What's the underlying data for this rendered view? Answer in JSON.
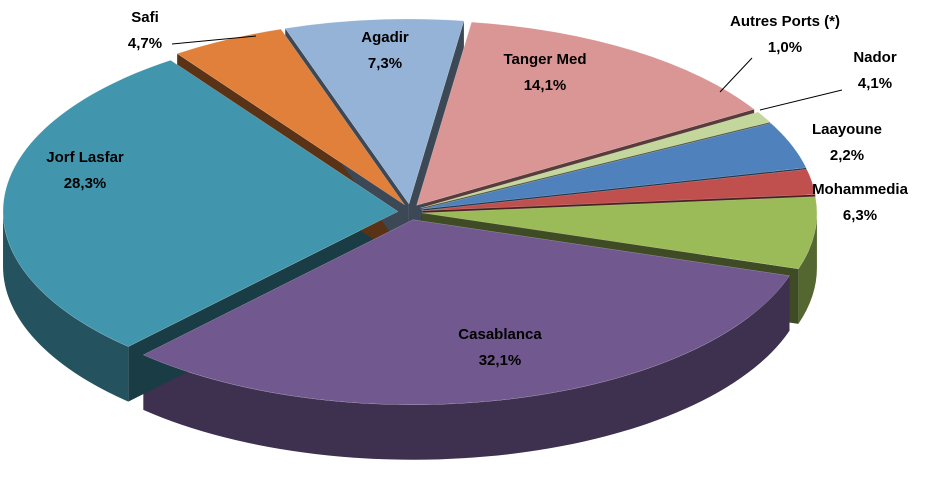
{
  "chart_data": {
    "type": "pie",
    "categories": [
      "Tanger Med",
      "Autres Ports (*)",
      "Nador",
      "Laayoune",
      "Mohammedia",
      "Casablanca",
      "Jorf Lasfar",
      "Safi",
      "Agadir"
    ],
    "values": [
      14.1,
      1.0,
      4.1,
      2.2,
      6.3,
      32.1,
      28.3,
      4.7,
      7.3
    ],
    "value_labels": [
      "14,1%",
      "1,0%",
      "4,1%",
      "2,2%",
      "6,3%",
      "32,1%",
      "28,3%",
      "4,7%",
      "7,3%"
    ],
    "colors": [
      "#d99694",
      "#c3d69b",
      "#4f81bd",
      "#c0504d",
      "#9bbb59",
      "#71588f",
      "#4196ad",
      "#e0803a",
      "#95b3d7"
    ]
  }
}
